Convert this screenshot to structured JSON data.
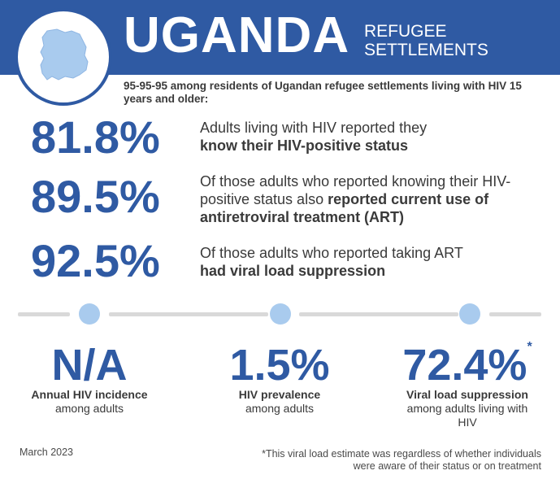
{
  "header": {
    "country": "UGANDA",
    "subtitle_line1": "REFUGEE",
    "subtitle_line2": "SETTLEMENTS",
    "map_icon": "uganda-map-icon"
  },
  "intro": "95-95-95 among residents of Ugandan refugee settlements living with HIV 15 years and older:",
  "stats": [
    {
      "value": "81.8%",
      "text_plain": "Adults living with HIV reported they",
      "text_bold": "know their HIV-positive status"
    },
    {
      "value": "89.5%",
      "text_plain": "Of those adults who reported knowing their HIV-positive status also",
      "text_bold": "reported current use of antiretroviral treatment (ART)"
    },
    {
      "value": "92.5%",
      "text_plain": "Of those adults who reported taking ART",
      "text_bold": "had viral load suppression"
    }
  ],
  "kpis": [
    {
      "value": "N/A",
      "label_bold": "Annual HIV incidence",
      "label": "among adults",
      "asterisk": ""
    },
    {
      "value": "1.5%",
      "label_bold": "HIV prevalence",
      "label": "among adults",
      "asterisk": ""
    },
    {
      "value": "72.4%",
      "label_bold": "Viral load suppression",
      "label": "among adults living with HIV",
      "asterisk": "*"
    }
  ],
  "footer": {
    "date": "March 2023",
    "footnote": "*This viral load estimate was regardless of whether individuals were aware of their status or on treatment"
  },
  "colors": {
    "brand_blue": "#2f5aa3",
    "dot_blue": "#a9cbee",
    "line_gray": "#d9d9d9"
  }
}
